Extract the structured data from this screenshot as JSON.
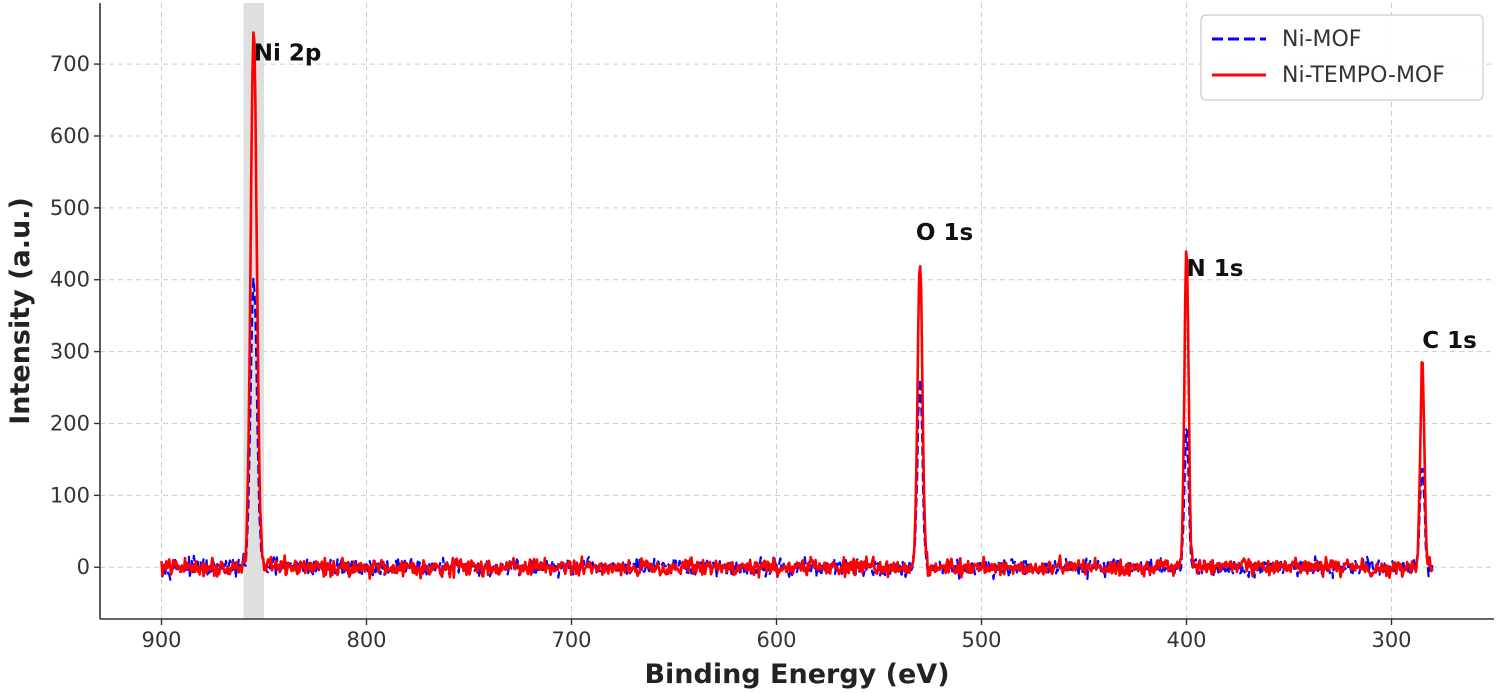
{
  "chart_data": {
    "type": "line",
    "title": "",
    "xlabel": "Binding Energy (eV)",
    "ylabel": "Intensity (a.u.)",
    "x_reversed": true,
    "xlim": [
      930,
      250
    ],
    "ylim": [
      -72,
      785
    ],
    "xticks": [
      900,
      800,
      700,
      600,
      500,
      400,
      300
    ],
    "yticks": [
      0,
      100,
      200,
      300,
      400,
      500,
      600,
      700
    ],
    "grid": true,
    "legend_position": "top-right",
    "highlight_band": [
      860,
      850
    ],
    "annotations": [
      {
        "text": "Ni 2p",
        "x": 855,
        "y": 705
      },
      {
        "text": "O 1s",
        "x": 532,
        "y": 455
      },
      {
        "text": "N 1s",
        "x": 400,
        "y": 405
      },
      {
        "text": "C 1s",
        "x": 285,
        "y": 305
      }
    ],
    "x_range": [
      900,
      280
    ],
    "noise_amplitude": 12,
    "series": [
      {
        "name": "Ni-MOF",
        "color": "#0000ff",
        "style": "dashed",
        "peaks": [
          {
            "center": 855,
            "height": 400,
            "width": 1.5
          },
          {
            "center": 530,
            "height": 260,
            "width": 1.2
          },
          {
            "center": 400,
            "height": 190,
            "width": 1.0
          },
          {
            "center": 285,
            "height": 150,
            "width": 1.0
          }
        ]
      },
      {
        "name": "Ni-TEMPO-MOF",
        "color": "#ff0000",
        "style": "solid",
        "peaks": [
          {
            "center": 855,
            "height": 745,
            "width": 1.5
          },
          {
            "center": 530,
            "height": 420,
            "width": 1.2
          },
          {
            "center": 400,
            "height": 440,
            "width": 1.0
          },
          {
            "center": 285,
            "height": 285,
            "width": 1.0
          }
        ]
      }
    ]
  }
}
